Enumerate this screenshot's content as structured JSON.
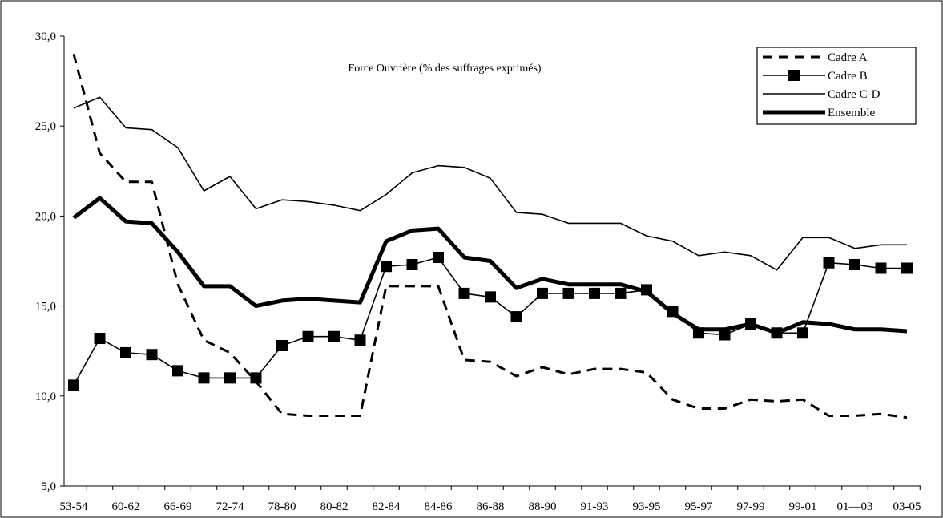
{
  "chart_data": {
    "type": "line",
    "title": "Force Ouvrière (% des suffrages exprimés)",
    "xlabel": "",
    "ylabel": "",
    "ylim": [
      5,
      30
    ],
    "yticks": [
      "5,0",
      "10,0",
      "15,0",
      "20,0",
      "25,0",
      "30,0"
    ],
    "xtick_labels": [
      "53-54",
      "60-62",
      "66-69",
      "72-74",
      "78-80",
      "80-82",
      "82-84",
      "84-86",
      "86-88",
      "88-90",
      "91-93",
      "93-95",
      "95-97",
      "97-99",
      "99-01",
      "01—03",
      "03-05"
    ],
    "grid": false,
    "legend_position": "top-right",
    "series": [
      {
        "name": "Cadre A",
        "style": "dashed",
        "color": "#000000",
        "values": [
          29.0,
          23.5,
          21.9,
          21.9,
          16.2,
          13.1,
          12.4,
          10.8,
          9.0,
          8.9,
          8.9,
          8.9,
          16.1,
          16.1,
          16.1,
          12.0,
          11.9,
          11.1,
          11.6,
          11.2,
          11.5,
          11.5,
          11.3,
          9.8,
          9.3,
          9.3,
          9.8,
          9.7,
          9.8,
          8.9,
          8.9,
          9.0,
          8.8
        ]
      },
      {
        "name": "Cadre B",
        "style": "square-markers",
        "color": "#000000",
        "values": [
          10.6,
          13.2,
          12.4,
          12.3,
          11.4,
          11.0,
          11.0,
          11.0,
          12.8,
          13.3,
          13.3,
          13.1,
          17.2,
          17.3,
          17.7,
          15.7,
          15.5,
          14.4,
          15.7,
          15.7,
          15.7,
          15.7,
          15.9,
          14.7,
          13.5,
          13.4,
          14.0,
          13.5,
          13.5,
          17.4,
          17.3,
          17.1,
          17.1
        ]
      },
      {
        "name": "Cadre C-D",
        "style": "thin",
        "color": "#000000",
        "values": [
          26.0,
          26.6,
          24.9,
          24.8,
          23.8,
          21.4,
          22.2,
          20.4,
          20.9,
          20.8,
          20.6,
          20.3,
          21.2,
          22.4,
          22.8,
          22.7,
          22.1,
          20.2,
          20.1,
          19.6,
          19.6,
          19.6,
          18.9,
          18.6,
          17.8,
          18.0,
          17.8,
          17.0,
          18.8,
          18.8,
          18.2,
          18.4,
          18.4
        ]
      },
      {
        "name": "Ensemble",
        "style": "thick",
        "color": "#000000",
        "values": [
          19.9,
          21.0,
          19.7,
          19.6,
          18.0,
          16.1,
          16.1,
          15.0,
          15.3,
          15.4,
          15.3,
          15.2,
          18.6,
          19.2,
          19.3,
          17.7,
          17.5,
          16.0,
          16.5,
          16.2,
          16.2,
          16.2,
          15.8,
          14.6,
          13.7,
          13.7,
          14.0,
          13.5,
          14.1,
          14.0,
          13.7,
          13.7,
          13.6
        ]
      }
    ]
  }
}
